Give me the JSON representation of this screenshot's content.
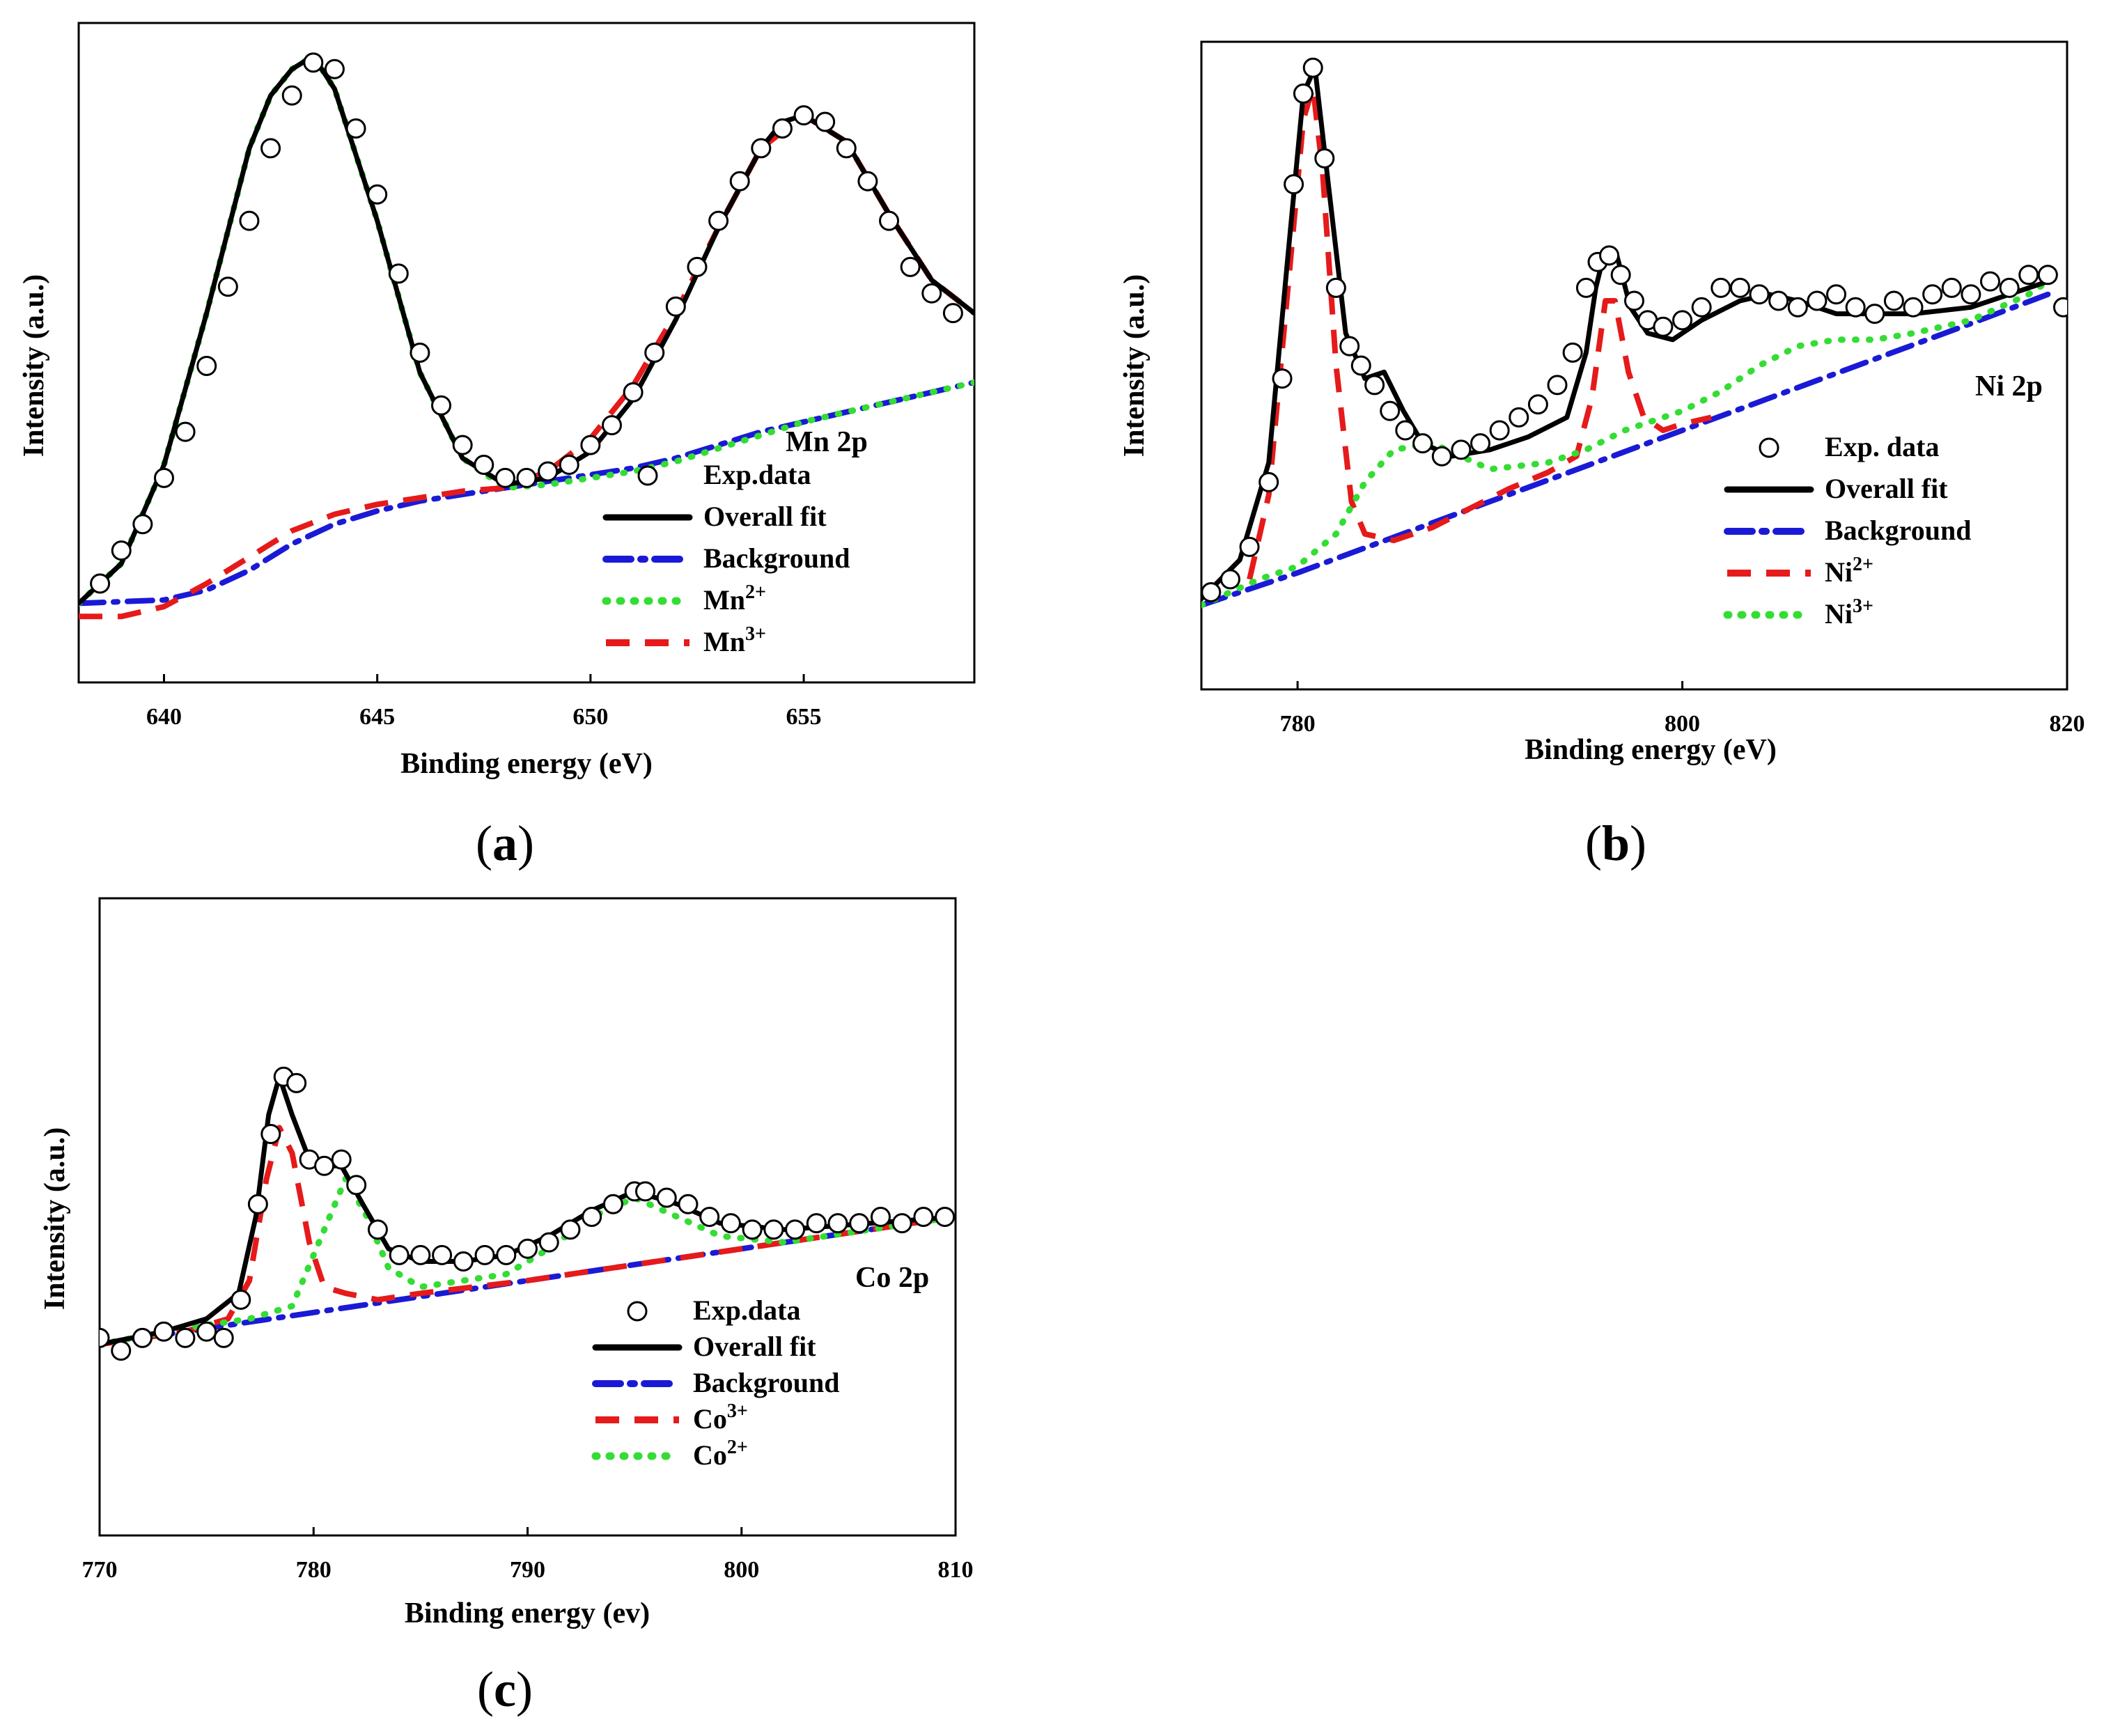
{
  "chart_data": [
    {
      "type": "line",
      "panel_label": "a",
      "title": "Mn 2p",
      "xlabel": "Binding energy (eV)",
      "ylabel": "Intensity (a.u.)",
      "xlim": [
        638,
        659
      ],
      "ylim": [
        0,
        1
      ],
      "xticks": [
        640,
        645,
        650,
        655
      ],
      "x_reversed": false,
      "legend": [
        {
          "key": "exp",
          "label": "Exp.data",
          "style": "circle",
          "color": "#000000"
        },
        {
          "key": "fit",
          "label": "Overall fit",
          "style": "solid",
          "color": "#000000"
        },
        {
          "key": "bg",
          "label": "Background",
          "style": "dashdot",
          "color": "#1a1ad6"
        },
        {
          "key": "c1",
          "label": "Mn",
          "sup": "2+",
          "style": "dotted",
          "color": "#33dd33"
        },
        {
          "key": "c2",
          "label": "Mn",
          "sup": "3+",
          "style": "dashed",
          "color": "#e61a1a"
        }
      ],
      "series": [
        {
          "name": "Background",
          "key": "bg",
          "x": [
            638,
            640,
            641,
            642,
            643,
            644,
            645,
            646,
            647,
            648,
            649,
            650,
            651,
            652,
            653,
            654,
            655,
            656,
            657,
            658,
            659
          ],
          "y": [
            0.12,
            0.125,
            0.14,
            0.17,
            0.21,
            0.24,
            0.26,
            0.275,
            0.285,
            0.295,
            0.305,
            0.315,
            0.325,
            0.34,
            0.36,
            0.38,
            0.395,
            0.41,
            0.425,
            0.44,
            0.455
          ]
        },
        {
          "name": "Mn2+",
          "key": "c1",
          "x": [
            638,
            639,
            640,
            641,
            642,
            642.5,
            643,
            643.5,
            644,
            645,
            646,
            647,
            648,
            649,
            650,
            651,
            652,
            653,
            654,
            655,
            656,
            657,
            658,
            659
          ],
          "y": [
            0.12,
            0.18,
            0.33,
            0.56,
            0.81,
            0.89,
            0.93,
            0.95,
            0.9,
            0.7,
            0.47,
            0.34,
            0.295,
            0.3,
            0.31,
            0.32,
            0.335,
            0.355,
            0.375,
            0.395,
            0.41,
            0.425,
            0.44,
            0.455
          ]
        },
        {
          "name": "Mn3+",
          "key": "c2",
          "x": [
            638,
            639,
            640,
            641,
            642,
            643,
            644,
            645,
            646,
            647,
            648,
            649,
            650,
            651,
            652,
            653,
            654,
            655,
            656,
            657,
            658,
            659
          ],
          "y": [
            0.1,
            0.1,
            0.115,
            0.15,
            0.19,
            0.23,
            0.255,
            0.27,
            0.28,
            0.29,
            0.295,
            0.32,
            0.37,
            0.45,
            0.56,
            0.69,
            0.81,
            0.86,
            0.82,
            0.71,
            0.61,
            0.56
          ]
        },
        {
          "name": "Overall fit",
          "key": "fit",
          "x": [
            638,
            639,
            640,
            641,
            642,
            642.5,
            643,
            643.5,
            644,
            645,
            646,
            647,
            648,
            649,
            650,
            651,
            652,
            653,
            654,
            654.5,
            655,
            656,
            657,
            658,
            659
          ],
          "y": [
            0.12,
            0.18,
            0.33,
            0.56,
            0.81,
            0.89,
            0.93,
            0.95,
            0.9,
            0.7,
            0.47,
            0.34,
            0.3,
            0.31,
            0.35,
            0.43,
            0.55,
            0.69,
            0.81,
            0.85,
            0.86,
            0.82,
            0.71,
            0.61,
            0.56
          ]
        },
        {
          "name": "Exp.data",
          "key": "exp",
          "x": [
            638.5,
            639,
            639.5,
            640,
            640.5,
            641,
            641.5,
            642,
            642.5,
            643,
            643.5,
            644,
            644.5,
            645,
            645.5,
            646,
            646.5,
            647,
            647.5,
            648,
            648.5,
            649,
            649.5,
            650,
            650.5,
            651,
            651.5,
            652,
            652.5,
            653,
            653.5,
            654,
            654.5,
            655,
            655.5,
            656,
            656.5,
            657,
            657.5,
            658,
            658.5
          ],
          "y": [
            0.15,
            0.2,
            0.24,
            0.31,
            0.38,
            0.48,
            0.6,
            0.7,
            0.81,
            0.89,
            0.94,
            0.93,
            0.84,
            0.74,
            0.62,
            0.5,
            0.42,
            0.36,
            0.33,
            0.31,
            0.31,
            0.32,
            0.33,
            0.36,
            0.39,
            0.44,
            0.5,
            0.57,
            0.63,
            0.7,
            0.76,
            0.81,
            0.84,
            0.86,
            0.85,
            0.81,
            0.76,
            0.7,
            0.63,
            0.59,
            0.56
          ]
        }
      ]
    },
    {
      "type": "line",
      "panel_label": "b",
      "title": "Ni 2p",
      "xlabel": "Binding energy (eV)",
      "ylabel": "Intensity (a.u.)",
      "xlim": [
        775,
        820
      ],
      "ylim": [
        0,
        1
      ],
      "xticks": [
        780,
        800,
        820
      ],
      "x_reversed": false,
      "legend": [
        {
          "key": "exp",
          "label": "Exp. data",
          "style": "circle",
          "color": "#000000"
        },
        {
          "key": "fit",
          "label": "Overall fit",
          "style": "solid",
          "color": "#000000"
        },
        {
          "key": "bg",
          "label": "Background",
          "style": "dashdot",
          "color": "#1a1ad6"
        },
        {
          "key": "c1",
          "label": "Ni",
          "sup": "2+",
          "style": "dashed",
          "color": "#e61a1a"
        },
        {
          "key": "c2",
          "label": "Ni",
          "sup": "3+",
          "style": "dotted",
          "color": "#33dd33"
        }
      ],
      "series": [
        {
          "name": "Background",
          "key": "bg",
          "x": [
            775,
            780,
            785,
            790,
            795,
            800,
            805,
            810,
            815,
            819
          ],
          "y": [
            0.13,
            0.18,
            0.235,
            0.29,
            0.345,
            0.4,
            0.455,
            0.51,
            0.565,
            0.61
          ]
        },
        {
          "name": "Ni2+",
          "key": "c1",
          "x": [
            777.5,
            778.5,
            779.5,
            780.3,
            780.8,
            781.3,
            782,
            782.8,
            783.5,
            785,
            787,
            789,
            791,
            793,
            794.5,
            795.3,
            796,
            796.5,
            797.2,
            798,
            799,
            800,
            801.5
          ],
          "y": [
            0.17,
            0.3,
            0.62,
            0.88,
            0.93,
            0.8,
            0.5,
            0.29,
            0.24,
            0.23,
            0.25,
            0.28,
            0.31,
            0.335,
            0.36,
            0.45,
            0.6,
            0.6,
            0.49,
            0.42,
            0.4,
            0.41,
            0.42
          ]
        },
        {
          "name": "Ni3+",
          "key": "c2",
          "x": [
            775,
            778,
            780,
            782,
            783.5,
            785,
            787,
            790,
            793,
            795,
            797,
            800,
            802,
            804,
            806,
            808,
            810,
            812,
            815,
            818,
            819
          ],
          "y": [
            0.13,
            0.17,
            0.19,
            0.24,
            0.32,
            0.37,
            0.38,
            0.34,
            0.35,
            0.37,
            0.4,
            0.43,
            0.46,
            0.5,
            0.53,
            0.54,
            0.54,
            0.55,
            0.57,
            0.61,
            0.63
          ]
        },
        {
          "name": "Overall fit",
          "key": "fit",
          "x": [
            775,
            777,
            778.5,
            779.5,
            780.3,
            780.9,
            781.6,
            782.5,
            783.5,
            784.5,
            785.5,
            786.5,
            788,
            790,
            792,
            794,
            795,
            795.5,
            796,
            796.6,
            797.3,
            798.2,
            799.5,
            801,
            803,
            804.5,
            806,
            808,
            810,
            812,
            815,
            818,
            819
          ],
          "y": [
            0.14,
            0.2,
            0.35,
            0.67,
            0.92,
            0.96,
            0.78,
            0.55,
            0.48,
            0.49,
            0.43,
            0.38,
            0.36,
            0.37,
            0.39,
            0.42,
            0.52,
            0.62,
            0.68,
            0.67,
            0.59,
            0.55,
            0.54,
            0.57,
            0.6,
            0.61,
            0.6,
            0.58,
            0.58,
            0.58,
            0.59,
            0.62,
            0.63
          ]
        },
        {
          "name": "Exp. data",
          "key": "exp",
          "x": [
            775.5,
            776.5,
            777.5,
            778.5,
            779.2,
            779.8,
            780.3,
            780.8,
            781.4,
            782,
            782.7,
            783.3,
            784,
            784.8,
            785.6,
            786.5,
            787.5,
            788.5,
            789.5,
            790.5,
            791.5,
            792.5,
            793.5,
            794.3,
            795,
            795.6,
            796.2,
            796.8,
            797.5,
            798.2,
            799,
            800,
            801,
            802,
            803,
            804,
            805,
            806,
            807,
            808,
            809,
            810,
            811,
            812,
            813,
            814,
            815,
            816,
            817,
            818,
            819,
            819.8
          ],
          "y": [
            0.15,
            0.17,
            0.22,
            0.32,
            0.48,
            0.78,
            0.92,
            0.96,
            0.82,
            0.62,
            0.53,
            0.5,
            0.47,
            0.43,
            0.4,
            0.38,
            0.36,
            0.37,
            0.38,
            0.4,
            0.42,
            0.44,
            0.47,
            0.52,
            0.62,
            0.66,
            0.67,
            0.64,
            0.6,
            0.57,
            0.56,
            0.57,
            0.59,
            0.62,
            0.62,
            0.61,
            0.6,
            0.59,
            0.6,
            0.61,
            0.59,
            0.58,
            0.6,
            0.59,
            0.61,
            0.62,
            0.61,
            0.63,
            0.62,
            0.64,
            0.64,
            0.59
          ]
        }
      ]
    },
    {
      "type": "line",
      "panel_label": "c",
      "title": "Co 2p",
      "xlabel": "Binding energy (ev)",
      "ylabel": "Intensity (a.u.)",
      "xlim": [
        770,
        810
      ],
      "ylim": [
        0,
        1
      ],
      "xticks": [
        770,
        780,
        790,
        800,
        810
      ],
      "x_reversed": false,
      "legend": [
        {
          "key": "exp",
          "label": "Exp.data",
          "style": "circle",
          "color": "#000000"
        },
        {
          "key": "fit",
          "label": "Overall fit",
          "style": "solid",
          "color": "#000000"
        },
        {
          "key": "bg",
          "label": "Background",
          "style": "dashdot",
          "color": "#1a1ad6"
        },
        {
          "key": "c1",
          "label": "Co",
          "sup": "3+",
          "style": "dashed",
          "color": "#e61a1a"
        },
        {
          "key": "c2",
          "label": "Co",
          "sup": "2+",
          "style": "dotted",
          "color": "#33dd33"
        }
      ],
      "series": [
        {
          "name": "Background",
          "key": "bg",
          "x": [
            770,
            775,
            780,
            785,
            790,
            795,
            800,
            805,
            810
          ],
          "y": [
            0.3,
            0.325,
            0.35,
            0.375,
            0.4,
            0.425,
            0.45,
            0.475,
            0.5
          ]
        },
        {
          "name": "Co3+",
          "key": "c1",
          "x": [
            770,
            774,
            776,
            777,
            777.8,
            778.4,
            779,
            779.8,
            780.5,
            781.5,
            783,
            785,
            790,
            795,
            800,
            805,
            810
          ],
          "y": [
            0.3,
            0.32,
            0.34,
            0.4,
            0.56,
            0.64,
            0.6,
            0.46,
            0.39,
            0.38,
            0.37,
            0.38,
            0.4,
            0.425,
            0.45,
            0.475,
            0.5
          ]
        },
        {
          "name": "Co2+",
          "key": "c2",
          "x": [
            770,
            774,
            777,
            779,
            780.5,
            781.5,
            782.5,
            783.5,
            785,
            787,
            789,
            791,
            793,
            795,
            797,
            799,
            802,
            806,
            810
          ],
          "y": [
            0.3,
            0.325,
            0.34,
            0.36,
            0.48,
            0.56,
            0.5,
            0.42,
            0.39,
            0.4,
            0.41,
            0.45,
            0.5,
            0.53,
            0.5,
            0.47,
            0.46,
            0.48,
            0.5
          ]
        },
        {
          "name": "Overall fit",
          "key": "fit",
          "x": [
            770,
            773,
            775,
            776.5,
            777.3,
            777.9,
            778.4,
            779,
            779.8,
            780.5,
            781.3,
            782.3,
            783.5,
            785,
            787,
            789,
            791,
            793,
            795,
            797,
            799,
            802,
            806,
            810
          ],
          "y": [
            0.3,
            0.32,
            0.34,
            0.38,
            0.5,
            0.66,
            0.72,
            0.66,
            0.59,
            0.58,
            0.58,
            0.52,
            0.45,
            0.43,
            0.43,
            0.44,
            0.47,
            0.51,
            0.54,
            0.52,
            0.49,
            0.48,
            0.49,
            0.5
          ]
        },
        {
          "name": "Exp.data",
          "key": "exp",
          "x": [
            770,
            771,
            772,
            773,
            774,
            775,
            775.8,
            776.6,
            777.4,
            778,
            778.6,
            779.2,
            779.8,
            780.5,
            781.3,
            782,
            783,
            784,
            785,
            786,
            787,
            788,
            789,
            790,
            791,
            792,
            793,
            794,
            795,
            795.5,
            796.5,
            797.5,
            798.5,
            799.5,
            800.5,
            801.5,
            802.5,
            803.5,
            804.5,
            805.5,
            806.5,
            807.5,
            808.5,
            809.5
          ],
          "y": [
            0.31,
            0.29,
            0.31,
            0.32,
            0.31,
            0.32,
            0.31,
            0.37,
            0.52,
            0.63,
            0.72,
            0.71,
            0.59,
            0.58,
            0.59,
            0.55,
            0.48,
            0.44,
            0.44,
            0.44,
            0.43,
            0.44,
            0.44,
            0.45,
            0.46,
            0.48,
            0.5,
            0.52,
            0.54,
            0.54,
            0.53,
            0.52,
            0.5,
            0.49,
            0.48,
            0.48,
            0.48,
            0.49,
            0.49,
            0.49,
            0.5,
            0.49,
            0.5,
            0.5
          ]
        }
      ]
    }
  ]
}
